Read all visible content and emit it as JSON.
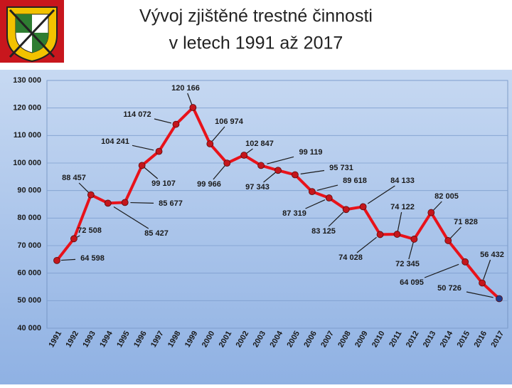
{
  "chart_data": {
    "type": "line",
    "title_lines": [
      "Vývoj zjištěné trestné činnosti",
      "v letech 1991 až 2017"
    ],
    "categories": [
      "1991",
      "1992",
      "1993",
      "1994",
      "1995",
      "1996",
      "1997",
      "1998",
      "1999",
      "2000",
      "2001",
      "2002",
      "2003",
      "2004",
      "2005",
      "2006",
      "2007",
      "2008",
      "2009",
      "2010",
      "2011",
      "2012",
      "2013",
      "2014",
      "2015",
      "2016",
      "2017"
    ],
    "series": [
      {
        "color": "#e8121a",
        "values": [
          64598,
          72508,
          88457,
          85427,
          85677,
          99107,
          104241,
          114072,
          120166,
          106974,
          99966,
          102847,
          99119,
          97343,
          95731,
          89618,
          87319,
          83125,
          84133,
          74028,
          74122,
          72345,
          82005,
          71828,
          64095,
          56432,
          50726
        ],
        "value_labels": [
          "64 598",
          "72 508",
          "88 457",
          "85 427",
          "85 677",
          "99 107",
          "104 241",
          "114 072",
          "120 166",
          "106 974",
          "99 966",
          "102 847",
          "99 119",
          "97 343",
          "95 731",
          "89 618",
          "87 319",
          "83 125",
          "84 133",
          "74 028",
          "74 122",
          "72 345",
          "82 005",
          "71 828",
          "64 095",
          "56 432",
          "50 726"
        ]
      }
    ],
    "marker_color": "#c4161c",
    "last_marker_color": "#1f3a8a",
    "ylim": [
      40000,
      130000
    ],
    "yticks": [
      {
        "value": 40000,
        "label": "40 000"
      },
      {
        "value": 50000,
        "label": "50 000"
      },
      {
        "value": 60000,
        "label": "60 000"
      },
      {
        "value": 70000,
        "label": "70 000"
      },
      {
        "value": 80000,
        "label": "80 000"
      },
      {
        "value": 90000,
        "label": "90 000"
      },
      {
        "value": 100000,
        "label": "100 000"
      },
      {
        "value": 110000,
        "label": "110 000"
      },
      {
        "value": 120000,
        "label": "120 000"
      },
      {
        "value": 130000,
        "label": "130 000"
      }
    ],
    "grid": true
  }
}
